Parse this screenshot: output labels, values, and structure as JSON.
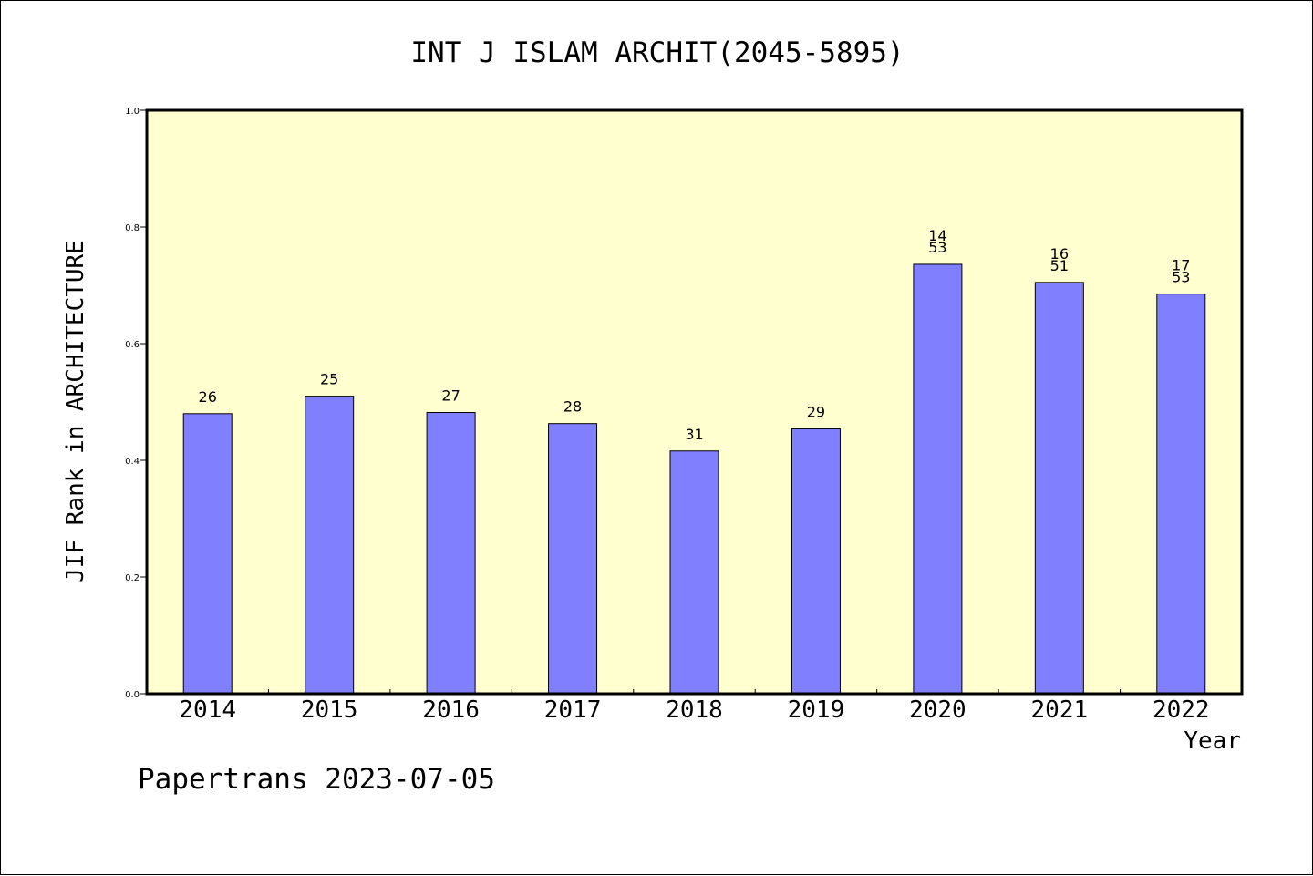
{
  "chart_data": {
    "type": "bar",
    "title": "INT J ISLAM ARCHIT(2045-5895)",
    "xlabel": "Year",
    "ylabel": "JIF Rank in ARCHITECTURE",
    "ylim": [
      0,
      1.0
    ],
    "yticks": [
      "0.0",
      "0.2",
      "0.4",
      "0.6",
      "0.8",
      "1.0"
    ],
    "categories": [
      "2014",
      "2015",
      "2016",
      "2017",
      "2018",
      "2019",
      "2020",
      "2021",
      "2022"
    ],
    "values": [
      0.48,
      0.51,
      0.482,
      0.463,
      0.416,
      0.454,
      0.736,
      0.705,
      0.685
    ],
    "labels": [
      [
        "26"
      ],
      [
        "25"
      ],
      [
        "27"
      ],
      [
        "28"
      ],
      [
        "31"
      ],
      [
        "29"
      ],
      [
        "14",
        "53"
      ],
      [
        "16",
        "51"
      ],
      [
        "17",
        "53"
      ]
    ],
    "grid": false,
    "colors": {
      "plot_background": "#ffffd0",
      "bar_fill": "#8080ff",
      "bar_stroke": "#000000"
    }
  },
  "footer": {
    "credit": "Papertrans 2023-07-05"
  }
}
